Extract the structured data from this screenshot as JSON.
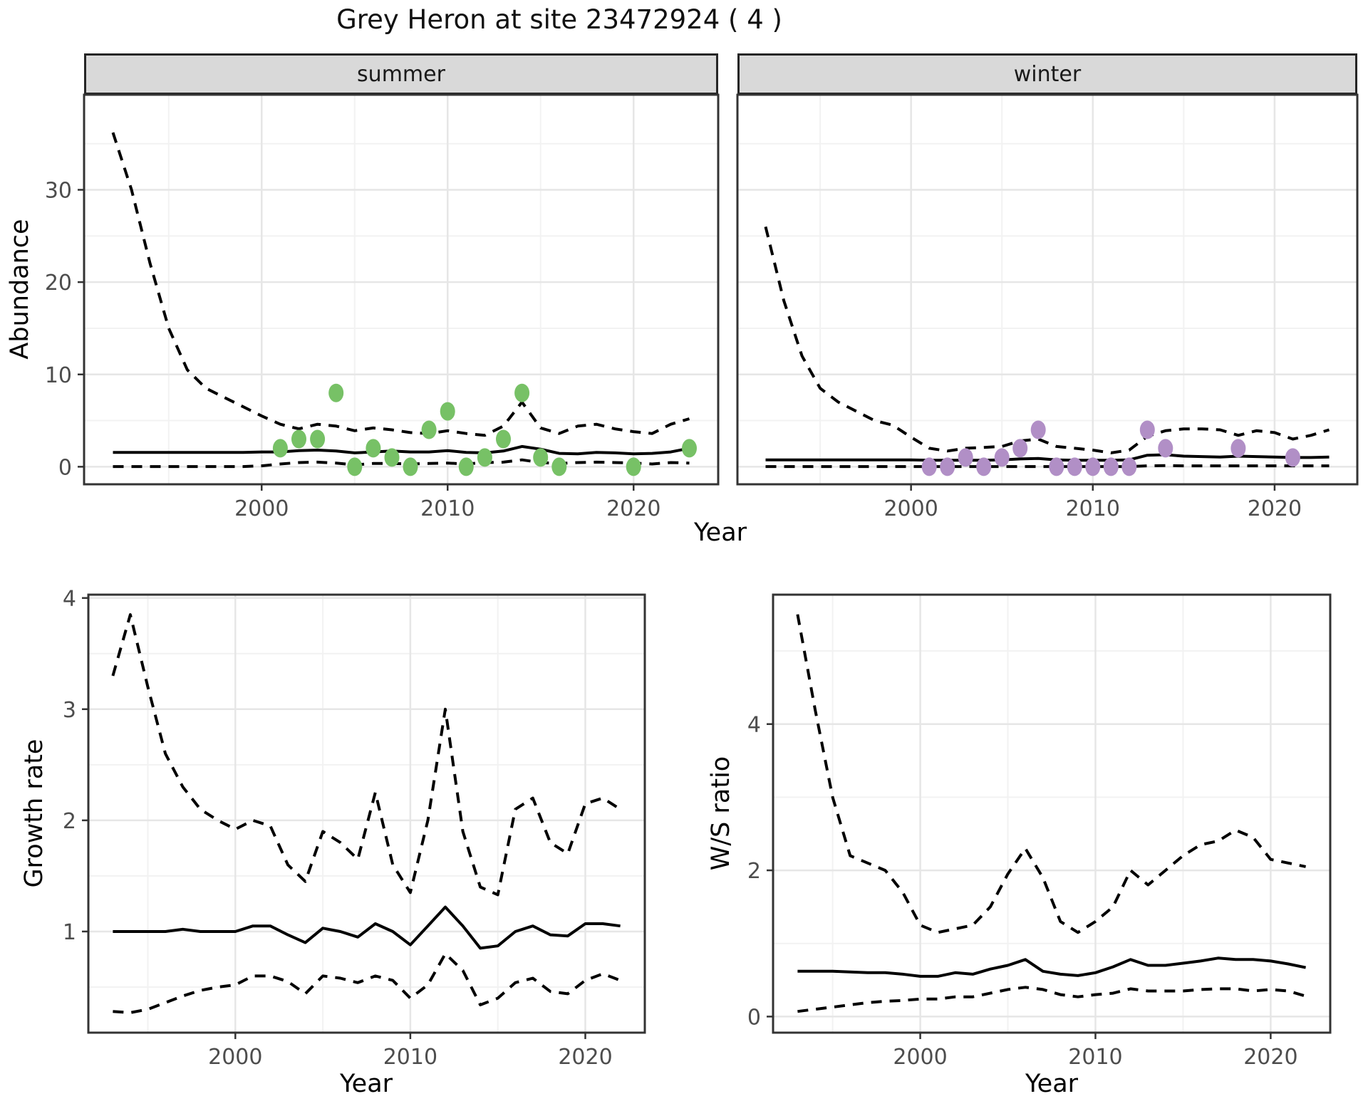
{
  "title": {
    "text": "Grey Heron at site 23472924 ( 4 )"
  },
  "facets": {
    "summer": "summer",
    "winter": "winter"
  },
  "axes": {
    "abundance": "Abundance",
    "year": "Year",
    "growth": "Growth rate",
    "ws": "W/S ratio"
  },
  "colors": {
    "summer_points": "#77c166",
    "winter_points": "#b18fc6",
    "line": "#000000",
    "grid_major": "#e6e6e6",
    "grid_minor": "#f2f2f2",
    "strip_bg": "#d9d9d9",
    "panel_border": "#333333",
    "tick_text": "#4d4d4d"
  },
  "chart_data": [
    {
      "id": "abundance_summer",
      "type": "line",
      "facet": "summer",
      "xlabel": "Year",
      "ylabel": "Abundance",
      "xlim": [
        1990.45,
        2024.55
      ],
      "ylim": [
        -1.9,
        40.3
      ],
      "xticks": [
        2000,
        2010,
        2020
      ],
      "yticks": [
        0,
        10,
        20,
        30
      ],
      "xminor": [
        1995,
        2005,
        2015
      ],
      "yminor": [
        5,
        15,
        25,
        35
      ],
      "x": [
        1992,
        1993,
        1994,
        1995,
        1996,
        1997,
        1998,
        1999,
        2000,
        2001,
        2002,
        2003,
        2004,
        2005,
        2006,
        2007,
        2008,
        2009,
        2010,
        2011,
        2012,
        2013,
        2014,
        2015,
        2016,
        2017,
        2018,
        2019,
        2020,
        2021,
        2022,
        2023
      ],
      "series": [
        {
          "name": "upper_ci",
          "style": "dashed",
          "values": [
            36.2,
            30,
            22,
            15,
            10.5,
            8.5,
            7.5,
            6.5,
            5.5,
            4.6,
            4.1,
            4.6,
            4.4,
            3.9,
            4.2,
            4.0,
            3.7,
            3.6,
            3.9,
            3.6,
            3.4,
            4.4,
            7.0,
            4.2,
            3.6,
            4.4,
            4.6,
            4.1,
            3.8,
            3.6,
            4.6,
            5.2
          ]
        },
        {
          "name": "fit",
          "style": "solid",
          "values": [
            1.55,
            1.55,
            1.55,
            1.55,
            1.55,
            1.55,
            1.55,
            1.55,
            1.6,
            1.6,
            1.75,
            1.8,
            1.7,
            1.5,
            1.6,
            1.7,
            1.6,
            1.6,
            1.75,
            1.55,
            1.5,
            1.7,
            2.2,
            1.9,
            1.45,
            1.4,
            1.55,
            1.5,
            1.4,
            1.45,
            1.6,
            2.0
          ]
        },
        {
          "name": "lower_ci",
          "style": "dashed",
          "values": [
            0.02,
            0.02,
            0.02,
            0.02,
            0.02,
            0.02,
            0.02,
            0.02,
            0.1,
            0.3,
            0.45,
            0.5,
            0.4,
            0.2,
            0.35,
            0.35,
            0.3,
            0.35,
            0.4,
            0.3,
            0.45,
            0.5,
            0.75,
            0.45,
            0.35,
            0.45,
            0.5,
            0.45,
            0.4,
            0.3,
            0.45,
            0.4
          ]
        }
      ],
      "points": {
        "name": "summer observations",
        "color_key": "summer_points",
        "data": [
          [
            2001,
            2
          ],
          [
            2002,
            3
          ],
          [
            2003,
            3
          ],
          [
            2004,
            8
          ],
          [
            2005,
            0
          ],
          [
            2006,
            2
          ],
          [
            2007,
            1
          ],
          [
            2008,
            0
          ],
          [
            2009,
            4
          ],
          [
            2010,
            6
          ],
          [
            2011,
            0
          ],
          [
            2012,
            1
          ],
          [
            2013,
            3
          ],
          [
            2014,
            8
          ],
          [
            2015,
            1
          ],
          [
            2016,
            0
          ],
          [
            2020,
            0
          ],
          [
            2023,
            2
          ]
        ]
      },
      "show_ylabels": true
    },
    {
      "id": "abundance_winter",
      "type": "line",
      "facet": "winter",
      "xlabel": "Year",
      "ylabel": "Abundance",
      "xlim": [
        1990.45,
        2024.55
      ],
      "ylim": [
        -1.9,
        40.3
      ],
      "xticks": [
        2000,
        2010,
        2020
      ],
      "yticks": [
        0,
        10,
        20,
        30
      ],
      "xminor": [
        1995,
        2005,
        2015
      ],
      "yminor": [
        5,
        15,
        25,
        35
      ],
      "x": [
        1992,
        1993,
        1994,
        1995,
        1996,
        1997,
        1998,
        1999,
        2000,
        2001,
        2002,
        2003,
        2004,
        2005,
        2006,
        2007,
        2008,
        2009,
        2010,
        2011,
        2012,
        2013,
        2014,
        2015,
        2016,
        2017,
        2018,
        2019,
        2020,
        2021,
        2022,
        2023
      ],
      "series": [
        {
          "name": "upper_ci",
          "style": "dashed",
          "values": [
            26,
            18,
            12,
            8.5,
            7,
            6,
            5,
            4.5,
            3.2,
            2.0,
            1.7,
            2.0,
            2.1,
            2.2,
            2.8,
            3.0,
            2.2,
            2.0,
            1.8,
            1.5,
            1.8,
            3.3,
            3.9,
            4.1,
            4.1,
            4.0,
            3.4,
            3.9,
            3.7,
            3.0,
            3.4,
            4.0
          ]
        },
        {
          "name": "fit",
          "style": "solid",
          "values": [
            0.75,
            0.75,
            0.75,
            0.75,
            0.75,
            0.75,
            0.75,
            0.75,
            0.75,
            0.7,
            0.7,
            0.7,
            0.7,
            0.75,
            0.85,
            0.9,
            0.75,
            0.7,
            0.7,
            0.7,
            0.75,
            1.25,
            1.3,
            1.15,
            1.1,
            1.05,
            1.15,
            1.1,
            1.05,
            1.0,
            1.0,
            1.05
          ]
        },
        {
          "name": "lower_ci",
          "style": "dashed",
          "values": [
            0.02,
            0.02,
            0.02,
            0.02,
            0.02,
            0.02,
            0.02,
            0.02,
            0.02,
            0.02,
            0.02,
            0.02,
            0.02,
            0.02,
            0.02,
            0.02,
            0.02,
            0.02,
            0.02,
            0.02,
            0.02,
            0.1,
            0.12,
            0.1,
            0.1,
            0.1,
            0.1,
            0.1,
            0.1,
            0.1,
            0.1,
            0.1
          ]
        }
      ],
      "points": {
        "name": "winter observations",
        "color_key": "winter_points",
        "data": [
          [
            2001,
            0
          ],
          [
            2002,
            0
          ],
          [
            2003,
            1
          ],
          [
            2004,
            0
          ],
          [
            2005,
            1
          ],
          [
            2006,
            2
          ],
          [
            2007,
            4
          ],
          [
            2008,
            0
          ],
          [
            2009,
            0
          ],
          [
            2010,
            0
          ],
          [
            2011,
            0
          ],
          [
            2012,
            0
          ],
          [
            2013,
            4
          ],
          [
            2014,
            2
          ],
          [
            2018,
            2
          ],
          [
            2021,
            1
          ]
        ]
      },
      "show_ylabels": false
    },
    {
      "id": "growth",
      "type": "line",
      "facet": null,
      "xlabel": "Year",
      "ylabel": "Growth rate",
      "xlim": [
        1991.6,
        2023.4
      ],
      "ylim": [
        0.09,
        4.03
      ],
      "xticks": [
        2000,
        2010,
        2020
      ],
      "yticks": [
        1,
        2,
        3,
        4
      ],
      "xminor": [
        1995,
        2005,
        2015
      ],
      "yminor": [
        0.5,
        1.5,
        2.5,
        3.5
      ],
      "x": [
        1993,
        1994,
        1995,
        1996,
        1997,
        1998,
        1999,
        2000,
        2001,
        2002,
        2003,
        2004,
        2005,
        2006,
        2007,
        2008,
        2009,
        2010,
        2011,
        2012,
        2013,
        2014,
        2015,
        2016,
        2017,
        2018,
        2019,
        2020,
        2021,
        2022
      ],
      "series": [
        {
          "name": "upper_ci",
          "style": "dashed",
          "values": [
            3.3,
            3.85,
            3.2,
            2.6,
            2.3,
            2.1,
            2.0,
            1.92,
            2.0,
            1.95,
            1.6,
            1.45,
            1.9,
            1.8,
            1.65,
            2.25,
            1.6,
            1.35,
            2.0,
            3.0,
            1.9,
            1.4,
            1.33,
            2.1,
            2.2,
            1.8,
            1.7,
            2.15,
            2.2,
            2.1
          ]
        },
        {
          "name": "fit",
          "style": "solid",
          "values": [
            1.0,
            1.0,
            1.0,
            1.0,
            1.02,
            1.0,
            1.0,
            1.0,
            1.05,
            1.05,
            0.97,
            0.9,
            1.03,
            1.0,
            0.95,
            1.07,
            1.0,
            0.88,
            1.05,
            1.22,
            1.05,
            0.85,
            0.87,
            1.0,
            1.05,
            0.97,
            0.96,
            1.07,
            1.07,
            1.05
          ]
        },
        {
          "name": "lower_ci",
          "style": "dashed",
          "values": [
            0.28,
            0.27,
            0.3,
            0.36,
            0.42,
            0.47,
            0.5,
            0.52,
            0.6,
            0.6,
            0.55,
            0.44,
            0.6,
            0.58,
            0.54,
            0.6,
            0.56,
            0.4,
            0.52,
            0.8,
            0.65,
            0.34,
            0.4,
            0.54,
            0.58,
            0.46,
            0.44,
            0.56,
            0.62,
            0.56
          ]
        }
      ],
      "points": null,
      "show_ylabels": true
    },
    {
      "id": "ws",
      "type": "line",
      "facet": null,
      "xlabel": "Year",
      "ylabel": "W/S ratio",
      "xlim": [
        1991.6,
        2023.4
      ],
      "ylim": [
        -0.22,
        5.77
      ],
      "xticks": [
        2000,
        2010,
        2020
      ],
      "yticks": [
        0,
        2,
        4
      ],
      "xminor": [
        1995,
        2005,
        2015
      ],
      "yminor": [
        1,
        3,
        5
      ],
      "x": [
        1993,
        1994,
        1995,
        1996,
        1997,
        1998,
        1999,
        2000,
        2001,
        2002,
        2003,
        2004,
        2005,
        2006,
        2007,
        2008,
        2009,
        2010,
        2011,
        2012,
        2013,
        2014,
        2015,
        2016,
        2017,
        2018,
        2019,
        2020,
        2021,
        2022
      ],
      "series": [
        {
          "name": "upper_ci",
          "style": "dashed",
          "values": [
            5.5,
            4.2,
            3.0,
            2.2,
            2.1,
            2.0,
            1.7,
            1.25,
            1.15,
            1.2,
            1.25,
            1.5,
            1.95,
            2.3,
            1.9,
            1.3,
            1.15,
            1.3,
            1.5,
            2.0,
            1.8,
            2.0,
            2.2,
            2.35,
            2.4,
            2.55,
            2.45,
            2.15,
            2.1,
            2.05
          ]
        },
        {
          "name": "fit",
          "style": "solid",
          "values": [
            0.62,
            0.62,
            0.62,
            0.61,
            0.6,
            0.6,
            0.58,
            0.55,
            0.55,
            0.6,
            0.58,
            0.65,
            0.7,
            0.78,
            0.62,
            0.58,
            0.56,
            0.6,
            0.68,
            0.78,
            0.7,
            0.7,
            0.73,
            0.76,
            0.8,
            0.78,
            0.78,
            0.76,
            0.72,
            0.67
          ]
        },
        {
          "name": "lower_ci",
          "style": "dashed",
          "values": [
            0.07,
            0.1,
            0.13,
            0.16,
            0.19,
            0.21,
            0.22,
            0.24,
            0.24,
            0.27,
            0.27,
            0.32,
            0.37,
            0.4,
            0.37,
            0.3,
            0.27,
            0.3,
            0.32,
            0.38,
            0.35,
            0.35,
            0.35,
            0.37,
            0.38,
            0.38,
            0.35,
            0.37,
            0.35,
            0.28
          ]
        }
      ],
      "points": null,
      "show_ylabels": true
    }
  ]
}
